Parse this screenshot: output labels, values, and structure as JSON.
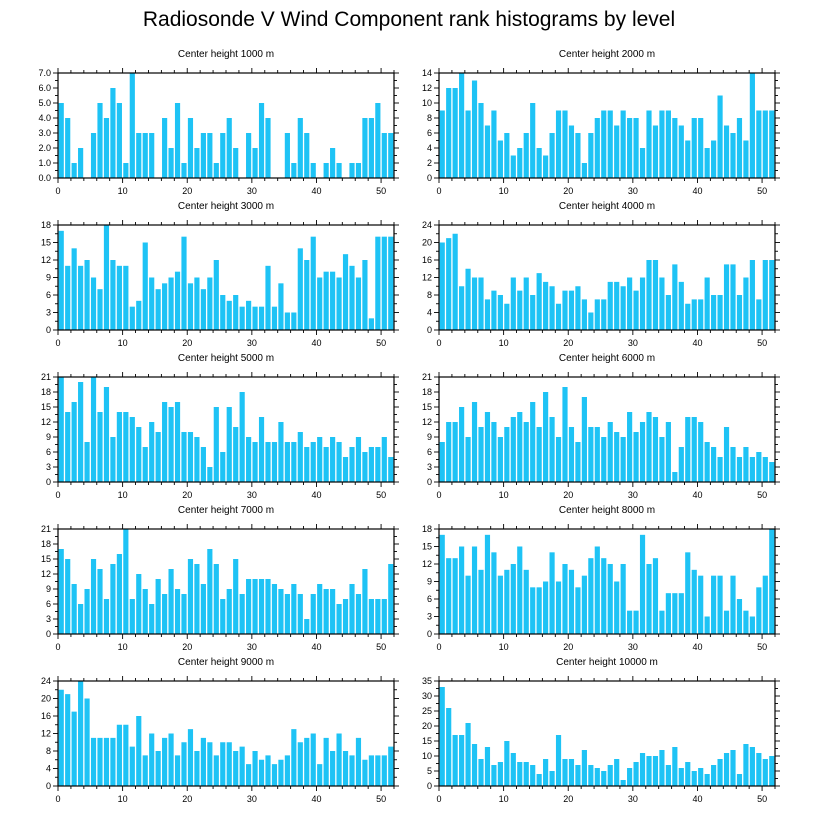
{
  "title": "Radiosonde V Wind Component rank histograms by level",
  "colors": {
    "bar": "#1ec3f5",
    "axis": "#000000"
  },
  "chart_data": [
    {
      "type": "bar",
      "title": "Center height 1000 m",
      "xlim": [
        0,
        52
      ],
      "ylim": [
        0,
        7
      ],
      "yticks": [
        "0.0",
        "1.0",
        "2.0",
        "3.0",
        "4.0",
        "5.0",
        "6.0",
        "7.0"
      ],
      "ytick_step": 1,
      "xticks": [
        0,
        10,
        20,
        30,
        40,
        50
      ],
      "values": [
        5,
        4,
        1,
        2,
        0,
        3,
        5,
        4,
        6,
        5,
        1,
        7,
        3,
        3,
        3,
        0,
        4,
        2,
        5,
        1,
        4,
        2,
        3,
        3,
        1,
        3,
        4,
        2,
        0,
        3,
        2,
        5,
        4,
        0,
        0,
        3,
        1,
        4,
        3,
        1,
        0,
        1,
        2,
        1,
        0,
        1,
        1,
        4,
        4,
        5,
        3,
        3
      ]
    },
    {
      "type": "bar",
      "title": "Center height 2000 m",
      "xlim": [
        0,
        52
      ],
      "ylim": [
        0,
        14
      ],
      "yticks": [
        "0",
        "2",
        "4",
        "6",
        "8",
        "10",
        "12",
        "14"
      ],
      "ytick_step": 2,
      "xticks": [
        0,
        10,
        20,
        30,
        40,
        50
      ],
      "values": [
        9,
        12,
        12,
        14,
        9,
        13,
        10,
        7,
        9,
        5,
        6,
        3,
        4,
        6,
        10,
        4,
        3,
        6,
        9,
        9,
        7,
        6,
        2,
        6,
        8,
        9,
        9,
        7,
        9,
        8,
        8,
        4,
        9,
        7,
        9,
        9,
        8,
        7,
        5,
        8,
        8,
        4,
        5,
        11,
        7,
        6,
        8,
        5,
        14,
        9,
        9,
        9
      ]
    },
    {
      "type": "bar",
      "title": "Center height 3000 m",
      "xlim": [
        0,
        52
      ],
      "ylim": [
        0,
        18
      ],
      "yticks": [
        "0",
        "3",
        "6",
        "9",
        "12",
        "15",
        "18"
      ],
      "ytick_step": 3,
      "xticks": [
        0,
        10,
        20,
        30,
        40,
        50
      ],
      "values": [
        17,
        11,
        14,
        11,
        12,
        9,
        7,
        18,
        12,
        11,
        11,
        4,
        5,
        15,
        9,
        7,
        8,
        9,
        10,
        16,
        8,
        9,
        7,
        9,
        12,
        6,
        5,
        6,
        4,
        5,
        4,
        4,
        11,
        4,
        8,
        3,
        3,
        14,
        12,
        16,
        9,
        10,
        10,
        9,
        13,
        11,
        9,
        12,
        2,
        16,
        16,
        16
      ]
    },
    {
      "type": "bar",
      "title": "Center height 4000 m",
      "xlim": [
        0,
        52
      ],
      "ylim": [
        0,
        24
      ],
      "yticks": [
        "0",
        "4",
        "8",
        "12",
        "16",
        "20",
        "24"
      ],
      "ytick_step": 4,
      "xticks": [
        0,
        10,
        20,
        30,
        40,
        50
      ],
      "values": [
        20,
        21,
        22,
        10,
        14,
        12,
        12,
        7,
        9,
        8,
        6,
        12,
        9,
        12,
        8,
        13,
        11,
        10,
        6,
        9,
        9,
        10,
        7,
        4,
        7,
        7,
        11,
        11,
        10,
        12,
        9,
        12,
        16,
        16,
        12,
        8,
        15,
        11,
        6,
        7,
        7,
        12,
        8,
        8,
        15,
        15,
        8,
        12,
        16,
        7,
        16,
        16
      ]
    },
    {
      "type": "bar",
      "title": "Center height 5000 m",
      "xlim": [
        0,
        52
      ],
      "ylim": [
        0,
        21
      ],
      "yticks": [
        "0",
        "3",
        "6",
        "9",
        "12",
        "15",
        "18",
        "21"
      ],
      "ytick_step": 3,
      "xticks": [
        0,
        10,
        20,
        30,
        40,
        50
      ],
      "values": [
        21,
        14,
        16,
        20,
        8,
        21,
        14,
        19,
        9,
        14,
        14,
        13,
        11,
        7,
        12,
        10,
        16,
        15,
        16,
        10,
        10,
        9,
        7,
        3,
        15,
        6,
        15,
        11,
        18,
        9,
        8,
        13,
        8,
        8,
        12,
        8,
        8,
        10,
        7,
        8,
        9,
        7,
        9,
        8,
        5,
        7,
        9,
        6,
        7,
        7,
        9,
        5
      ]
    },
    {
      "type": "bar",
      "title": "Center height 6000 m",
      "xlim": [
        0,
        52
      ],
      "ylim": [
        0,
        21
      ],
      "yticks": [
        "0",
        "3",
        "6",
        "9",
        "12",
        "15",
        "18",
        "21"
      ],
      "ytick_step": 3,
      "xticks": [
        0,
        10,
        20,
        30,
        40,
        50
      ],
      "values": [
        8,
        12,
        12,
        15,
        9,
        16,
        11,
        14,
        12,
        9,
        11,
        13,
        14,
        12,
        16,
        11,
        18,
        13,
        9,
        19,
        11,
        8,
        17,
        11,
        11,
        9,
        12,
        10,
        9,
        14,
        10,
        12,
        14,
        13,
        9,
        12,
        2,
        7,
        13,
        13,
        12,
        8,
        7,
        5,
        11,
        7,
        5,
        7,
        5,
        6,
        5,
        4
      ]
    },
    {
      "type": "bar",
      "title": "Center height 7000 m",
      "xlim": [
        0,
        52
      ],
      "ylim": [
        0,
        21
      ],
      "yticks": [
        "0",
        "3",
        "6",
        "9",
        "12",
        "15",
        "18",
        "21"
      ],
      "ytick_step": 3,
      "xticks": [
        0,
        10,
        20,
        30,
        40,
        50
      ],
      "values": [
        17,
        15,
        10,
        6,
        9,
        15,
        13,
        7,
        14,
        16,
        21,
        7,
        12,
        9,
        6,
        11,
        8,
        13,
        9,
        8,
        15,
        14,
        10,
        17,
        14,
        7,
        9,
        15,
        8,
        11,
        11,
        11,
        11,
        10,
        9,
        8,
        10,
        8,
        3,
        8,
        10,
        9,
        9,
        6,
        7,
        10,
        8,
        13,
        7,
        7,
        7,
        14
      ]
    },
    {
      "type": "bar",
      "title": "Center height 8000 m",
      "xlim": [
        0,
        52
      ],
      "ylim": [
        0,
        18
      ],
      "yticks": [
        "0",
        "3",
        "6",
        "9",
        "12",
        "15",
        "18"
      ],
      "ytick_step": 3,
      "xticks": [
        0,
        10,
        20,
        30,
        40,
        50
      ],
      "values": [
        17,
        13,
        13,
        15,
        10,
        15,
        11,
        17,
        14,
        10,
        11,
        12,
        15,
        11,
        8,
        8,
        9,
        14,
        9,
        12,
        11,
        8,
        10,
        13,
        15,
        13,
        12,
        9,
        12,
        4,
        4,
        17,
        12,
        13,
        4,
        7,
        7,
        7,
        14,
        11,
        10,
        3,
        10,
        10,
        4,
        10,
        6,
        4,
        3,
        8,
        10,
        18
      ]
    },
    {
      "type": "bar",
      "title": "Center height 9000 m",
      "xlim": [
        0,
        52
      ],
      "ylim": [
        0,
        24
      ],
      "yticks": [
        "0",
        "4",
        "8",
        "12",
        "16",
        "20",
        "24"
      ],
      "ytick_step": 4,
      "xticks": [
        0,
        10,
        20,
        30,
        40,
        50
      ],
      "values": [
        22,
        21,
        17,
        24,
        20,
        11,
        11,
        11,
        11,
        14,
        14,
        9,
        16,
        7,
        12,
        8,
        11,
        12,
        7,
        10,
        13,
        8,
        11,
        10,
        7,
        10,
        10,
        8,
        9,
        5,
        8,
        6,
        7,
        5,
        6,
        7,
        13,
        10,
        11,
        12,
        5,
        11,
        8,
        12,
        8,
        7,
        11,
        6,
        7,
        7,
        7,
        9
      ]
    },
    {
      "type": "bar",
      "title": "Center height 10000 m",
      "xlim": [
        0,
        52
      ],
      "ylim": [
        0,
        35
      ],
      "yticks": [
        "0",
        "5",
        "10",
        "15",
        "20",
        "25",
        "30",
        "35"
      ],
      "ytick_step": 5,
      "xticks": [
        0,
        10,
        20,
        30,
        40,
        50
      ],
      "values": [
        33,
        26,
        17,
        17,
        21,
        14,
        9,
        13,
        7,
        8,
        15,
        11,
        8,
        8,
        7,
        4,
        9,
        5,
        17,
        9,
        9,
        7,
        12,
        7,
        6,
        5,
        7,
        9,
        2,
        6,
        8,
        11,
        10,
        10,
        12,
        7,
        13,
        6,
        8,
        5,
        6,
        4,
        7,
        9,
        11,
        12,
        4,
        14,
        13,
        11,
        9,
        10
      ]
    }
  ]
}
